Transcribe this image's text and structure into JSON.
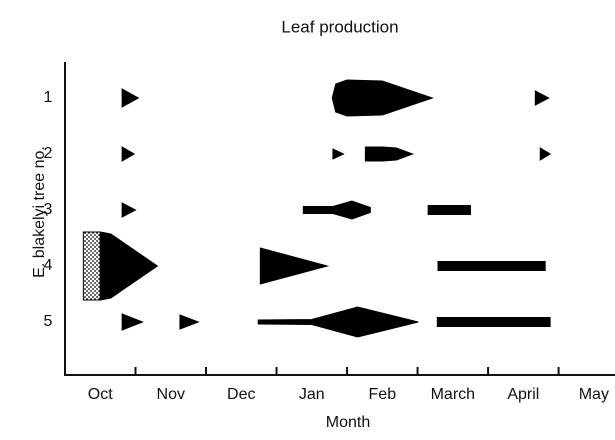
{
  "chart_data": {
    "type": "kite",
    "title": "Leaf production",
    "x_label": "Month",
    "y_label": "E. blakelyi tree no.",
    "categories": [
      "Oct",
      "Nov",
      "Dec",
      "Jan",
      "Feb",
      "March",
      "April",
      "May"
    ],
    "xlim": [
      -0.5,
      7.3
    ],
    "xticks": [
      0.5,
      1.5,
      2.5,
      3.5,
      4.5,
      5.5,
      6.5
    ],
    "rows": [
      "1",
      "2",
      "3",
      "4",
      "5"
    ],
    "color": "#000000",
    "series": [
      {
        "name": "1",
        "kites": [
          {
            "points": [
              [
                0.31,
                0
              ],
              [
                0.31,
                0.9
              ],
              [
                0.54,
                0
              ]
            ]
          },
          {
            "points": [
              [
                3.29,
                0
              ],
              [
                3.34,
                1.4
              ],
              [
                3.5,
                1.8
              ],
              [
                4.0,
                1.7
              ],
              [
                4.71,
                0
              ]
            ]
          },
          {
            "points": [
              [
                6.17,
                0
              ],
              [
                6.17,
                0.7
              ],
              [
                6.36,
                0
              ]
            ]
          }
        ]
      },
      {
        "name": "2",
        "kites": [
          {
            "points": [
              [
                0.31,
                0
              ],
              [
                0.31,
                0.7
              ],
              [
                0.48,
                0
              ]
            ]
          },
          {
            "points": [
              [
                3.3,
                0
              ],
              [
                3.3,
                0.5
              ],
              [
                3.45,
                0
              ]
            ]
          },
          {
            "points": [
              [
                3.76,
                0
              ],
              [
                3.76,
                0.7
              ],
              [
                4.0,
                0.7
              ],
              [
                4.2,
                0.6
              ],
              [
                4.43,
                0
              ]
            ]
          },
          {
            "points": [
              [
                6.24,
                0
              ],
              [
                6.24,
                0.6
              ],
              [
                6.38,
                0
              ]
            ]
          }
        ]
      },
      {
        "name": "3",
        "kites": [
          {
            "points": [
              [
                0.31,
                0
              ],
              [
                0.31,
                0.7
              ],
              [
                0.5,
                0
              ]
            ]
          },
          {
            "points": [
              [
                2.88,
                0
              ],
              [
                2.88,
                0.35
              ],
              [
                3.3,
                0.35
              ],
              [
                3.57,
                0.9
              ],
              [
                3.83,
                0.25
              ],
              [
                3.83,
                0
              ]
            ]
          },
          {
            "points": [
              [
                4.65,
                0
              ],
              [
                4.65,
                0.45
              ],
              [
                5.25,
                0.45
              ],
              [
                5.25,
                0
              ]
            ]
          }
        ]
      },
      {
        "name": "4",
        "kites": [
          {
            "points": [
              [
                -0.24,
                0
              ],
              [
                -0.24,
                3.4
              ],
              [
                0,
                3.4
              ],
              [
                0,
                0
              ]
            ],
            "pattern": "dots"
          },
          {
            "points": [
              [
                0,
                0
              ],
              [
                0,
                3.4
              ],
              [
                0.15,
                3.2
              ],
              [
                0.81,
                0
              ]
            ]
          },
          {
            "points": [
              [
                2.27,
                0
              ],
              [
                2.27,
                1.8
              ],
              [
                3.22,
                0
              ]
            ]
          },
          {
            "points": [
              [
                4.79,
                0
              ],
              [
                4.79,
                0.45
              ],
              [
                6.31,
                0.45
              ],
              [
                6.31,
                0
              ]
            ]
          }
        ]
      },
      {
        "name": "5",
        "kites": [
          {
            "points": [
              [
                0.31,
                0
              ],
              [
                0.31,
                0.8
              ],
              [
                0.6,
                0
              ]
            ]
          },
          {
            "points": [
              [
                1.13,
                0
              ],
              [
                1.13,
                0.7
              ],
              [
                1.39,
                0
              ]
            ]
          },
          {
            "points": [
              [
                2.24,
                0
              ],
              [
                2.24,
                0.2
              ],
              [
                3.0,
                0.25
              ],
              [
                3.65,
                1.5
              ],
              [
                4.51,
                0
              ]
            ]
          },
          {
            "points": [
              [
                4.78,
                0
              ],
              [
                4.78,
                0.45
              ],
              [
                6.38,
                0.45
              ],
              [
                6.38,
                0
              ]
            ]
          }
        ]
      }
    ]
  }
}
